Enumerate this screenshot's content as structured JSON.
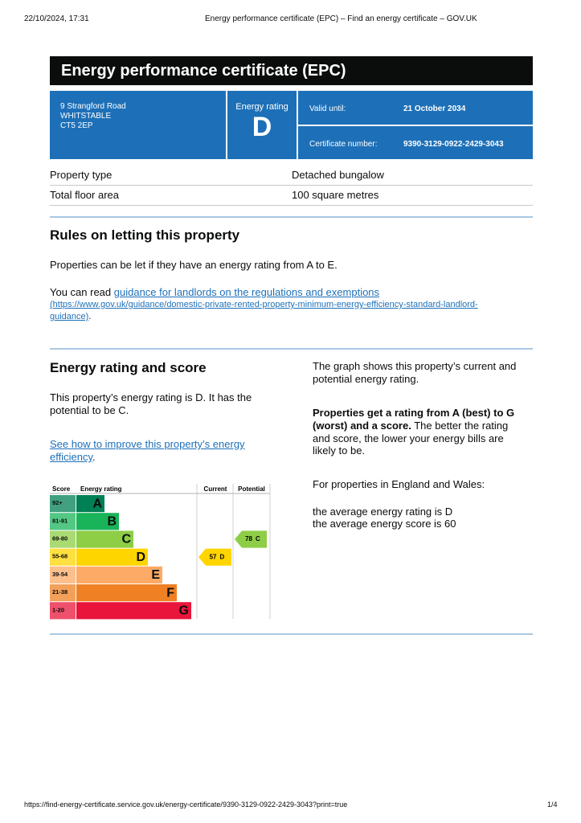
{
  "print_header": {
    "datetime": "22/10/2024, 17:31",
    "page_title": "Energy performance certificate (EPC) – Find an energy certificate – GOV.UK"
  },
  "title": "Energy performance certificate (EPC)",
  "summary": {
    "address": [
      "9 Strangford Road",
      "WHITSTABLE",
      "CT5 2EP"
    ],
    "energy_rating_label": "Energy rating",
    "energy_rating": "D",
    "valid_until_label": "Valid until:",
    "valid_until": "21 October 2034",
    "certificate_number_label": "Certificate number:",
    "certificate_number": "9390-3129-0922-2429-3043"
  },
  "property_table": {
    "rows": [
      [
        "Property type",
        "Detached bungalow"
      ],
      [
        "Total floor area",
        "100 square metres"
      ]
    ]
  },
  "letting_rules": {
    "heading": "Rules on letting this property",
    "paragraph": "Properties can be let if they have an energy rating from A to E.",
    "read_prefix": "You can read ",
    "link_text": "guidance for landlords on the regulations and exemptions",
    "link_url_line1": "(https://www.gov.uk/guidance/domestic-private-rented-property-minimum-energy-efficiency-standard-landlord-",
    "link_url_line2": "guidance)",
    "end": "."
  },
  "energy_rating_section": {
    "heading": "Energy rating and score",
    "paragraph_lines": [
      "This property’s energy rating is D. It has the",
      "potential to be C."
    ],
    "link_lines": [
      "See how to improve this property’s energy",
      "efficiency"
    ],
    "link_end": ".",
    "right_paragraph_lines": [
      "The graph shows this property’s current and",
      "potential energy rating."
    ],
    "bold_lines": [
      "Properties get a rating from A (best) to G",
      "(worst) and a score."
    ],
    "rest_lines": [
      " The better the rating",
      "and score, the lower your energy bills are",
      "likely to be."
    ],
    "england_wales": "For properties in England and Wales:",
    "average_lines": [
      "the average energy rating is D",
      "the average energy score is 60"
    ]
  },
  "rating_graph": {
    "headers": [
      "Score",
      "Energy rating",
      "Current",
      "Potential"
    ],
    "bands": [
      {
        "score": "92+",
        "letter": "A",
        "color": "#008054"
      },
      {
        "score": "81-91",
        "letter": "B",
        "color": "#19b459"
      },
      {
        "score": "69-80",
        "letter": "C",
        "color": "#8dce46"
      },
      {
        "score": "55-68",
        "letter": "D",
        "color": "#ffd500"
      },
      {
        "score": "39-54",
        "letter": "E",
        "color": "#fcaa65"
      },
      {
        "score": "21-38",
        "letter": "F",
        "color": "#ef8023"
      },
      {
        "score": "1-20",
        "letter": "G",
        "color": "#e9153b"
      }
    ],
    "current": {
      "score": 57,
      "rating": "D"
    },
    "potential": {
      "score": 78,
      "rating": "C"
    }
  },
  "footer": {
    "url": "https://find-energy-certificate.service.gov.uk/energy-certificate/9390-3129-0922-2429-3043?print=true",
    "page": "1/4"
  }
}
